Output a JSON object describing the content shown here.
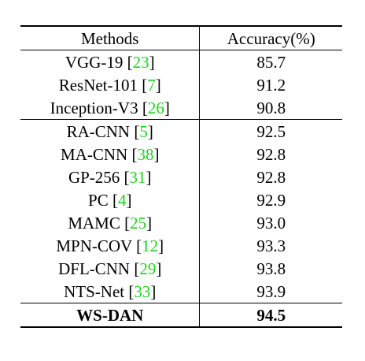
{
  "table": {
    "headers": {
      "method": "Methods",
      "accuracy": "Accuracy(%)"
    },
    "group1": [
      {
        "method": "VGG-19",
        "ref": "23",
        "accuracy": "85.7"
      },
      {
        "method": "ResNet-101",
        "ref": "7",
        "accuracy": "91.2"
      },
      {
        "method": "Inception-V3",
        "ref": "26",
        "accuracy": "90.8"
      }
    ],
    "group2": [
      {
        "method": "RA-CNN",
        "ref": "5",
        "accuracy": "92.5"
      },
      {
        "method": "MA-CNN",
        "ref": "38",
        "accuracy": "92.8"
      },
      {
        "method": "GP-256",
        "ref": "31",
        "accuracy": "92.8"
      },
      {
        "method": "PC",
        "ref": "4",
        "accuracy": "92.9"
      },
      {
        "method": "MAMC",
        "ref": "25",
        "accuracy": "93.0"
      },
      {
        "method": "MPN-COV",
        "ref": "12",
        "accuracy": "93.3"
      },
      {
        "method": "DFL-CNN",
        "ref": "29",
        "accuracy": "93.8"
      },
      {
        "method": "NTS-Net",
        "ref": "33",
        "accuracy": "93.9"
      }
    ],
    "final": {
      "method": "WS-DAN",
      "accuracy": "94.5"
    }
  },
  "colors": {
    "reference_link": "#1fd21f"
  }
}
